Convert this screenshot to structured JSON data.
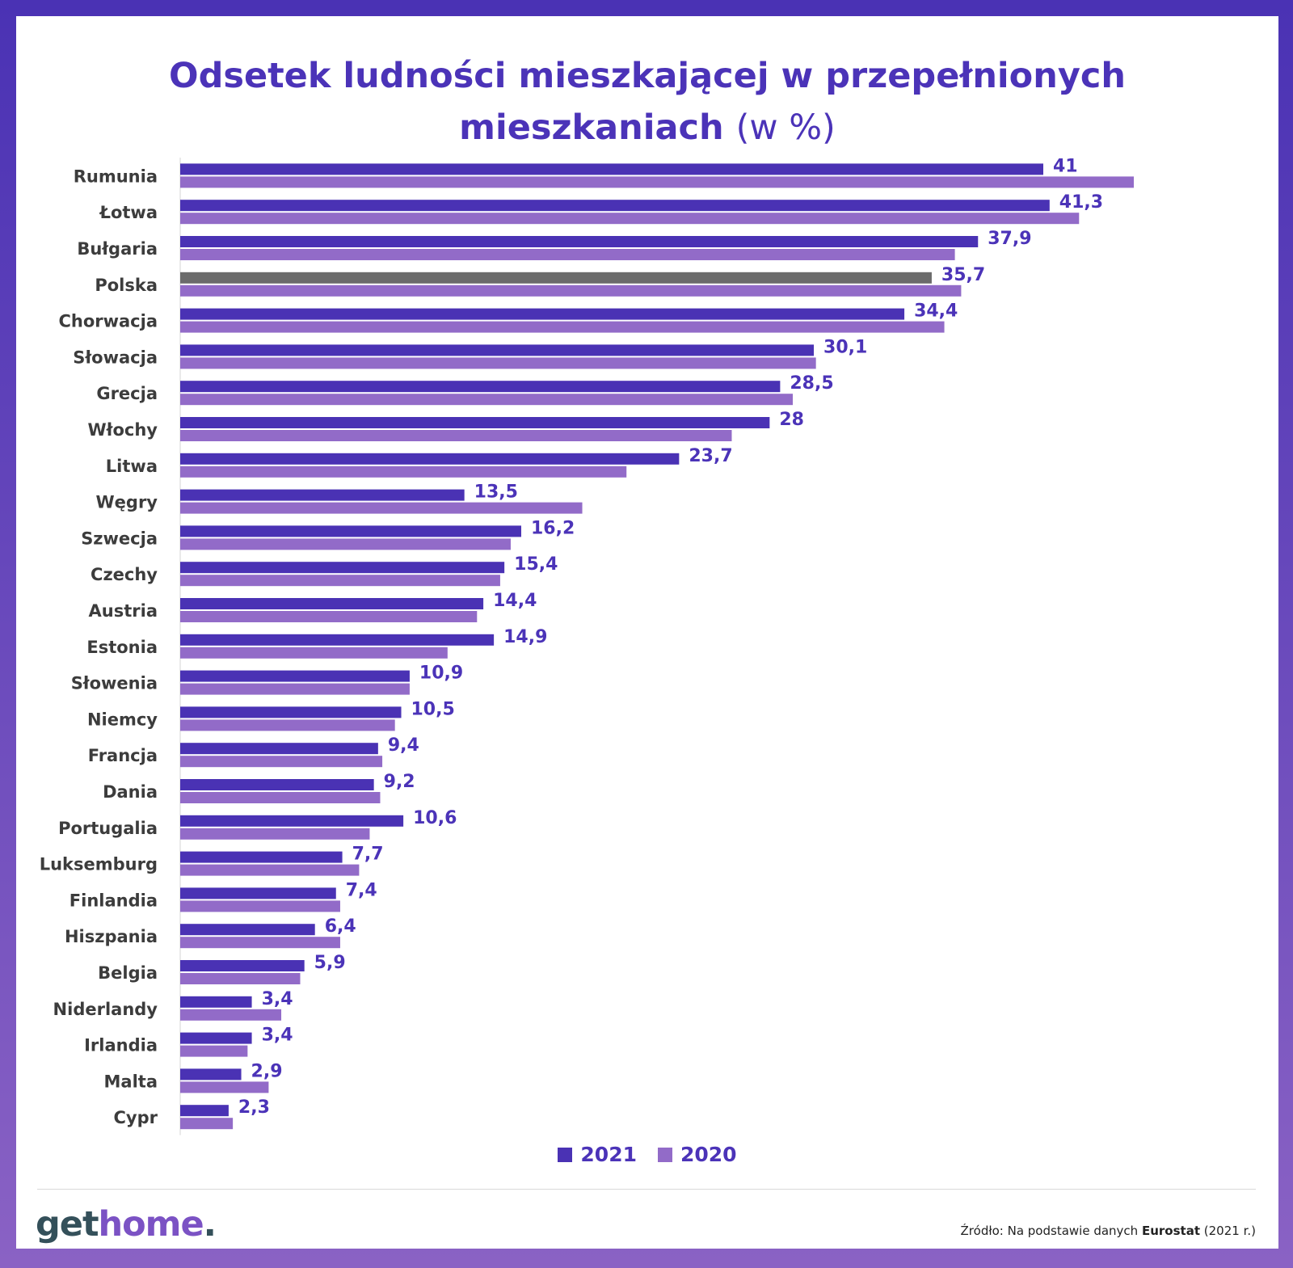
{
  "title": {
    "line1": "Odsetek ludności mieszkającej w przepełnionych",
    "line2_bold": "mieszkaniach",
    "line2_light": "(w %)"
  },
  "colors": {
    "series_2021": "#4a32b4",
    "series_2020": "#926bc8",
    "highlight_polska_2021": "#6b6b6b",
    "value_label": "#4b33b8",
    "category_label": "#3c3c3c"
  },
  "chart_data": {
    "type": "bar",
    "orientation": "horizontal",
    "categories": [
      "Rumunia",
      "Łotwa",
      "Bułgaria",
      "Polska",
      "Chorwacja",
      "Słowacja",
      "Grecja",
      "Włochy",
      "Litwa",
      "Węgry",
      "Szwecja",
      "Czechy",
      "Austria",
      "Estonia",
      "Słowenia",
      "Niemcy",
      "Francja",
      "Dania",
      "Portugalia",
      "Luksemburg",
      "Finlandia",
      "Hiszpania",
      "Belgia",
      "Niderlandy",
      "Irlandia",
      "Malta",
      "Cypr"
    ],
    "series": [
      {
        "name": "2021",
        "values": [
          41,
          41.3,
          37.9,
          35.7,
          34.4,
          30.1,
          28.5,
          28,
          23.7,
          13.5,
          16.2,
          15.4,
          14.4,
          14.9,
          10.9,
          10.5,
          9.4,
          9.2,
          10.6,
          7.7,
          7.4,
          6.4,
          5.9,
          3.4,
          3.4,
          2.9,
          2.3
        ],
        "labels": [
          "41",
          "41,3",
          "37,9",
          "35,7",
          "34,4",
          "30,1",
          "28,5",
          "28",
          "23,7",
          "13,5",
          "16,2",
          "15,4",
          "14,4",
          "14,9",
          "10,9",
          "10,5",
          "9,4",
          "9,2",
          "10,6",
          "7,7",
          "7,4",
          "6,4",
          "5,9",
          "3,4",
          "3,4",
          "2,9",
          "2,3"
        ]
      },
      {
        "name": "2020",
        "values": [
          45.3,
          42.7,
          36.8,
          37.1,
          36.3,
          30.2,
          29.1,
          26.2,
          21.2,
          19.1,
          15.7,
          15.2,
          14.1,
          12.7,
          10.9,
          10.2,
          9.6,
          9.5,
          9,
          8.5,
          7.6,
          7.6,
          5.7,
          4.8,
          3.2,
          4.2,
          2.5
        ]
      }
    ],
    "highlight": {
      "category": "Polska",
      "series": "2021"
    },
    "xlim": [
      0,
      45.3
    ],
    "grid": false,
    "legend": "bottom-center"
  },
  "legend": {
    "item_2021": "2021",
    "item_2020": "2020"
  },
  "footer": {
    "logo_get": "get",
    "logo_home": "home",
    "logo_dot": ".",
    "source_prefix": "Źródło: Na podstawie danych",
    "source_bold": "Eurostat",
    "source_suffix": "(2021 r.)"
  }
}
